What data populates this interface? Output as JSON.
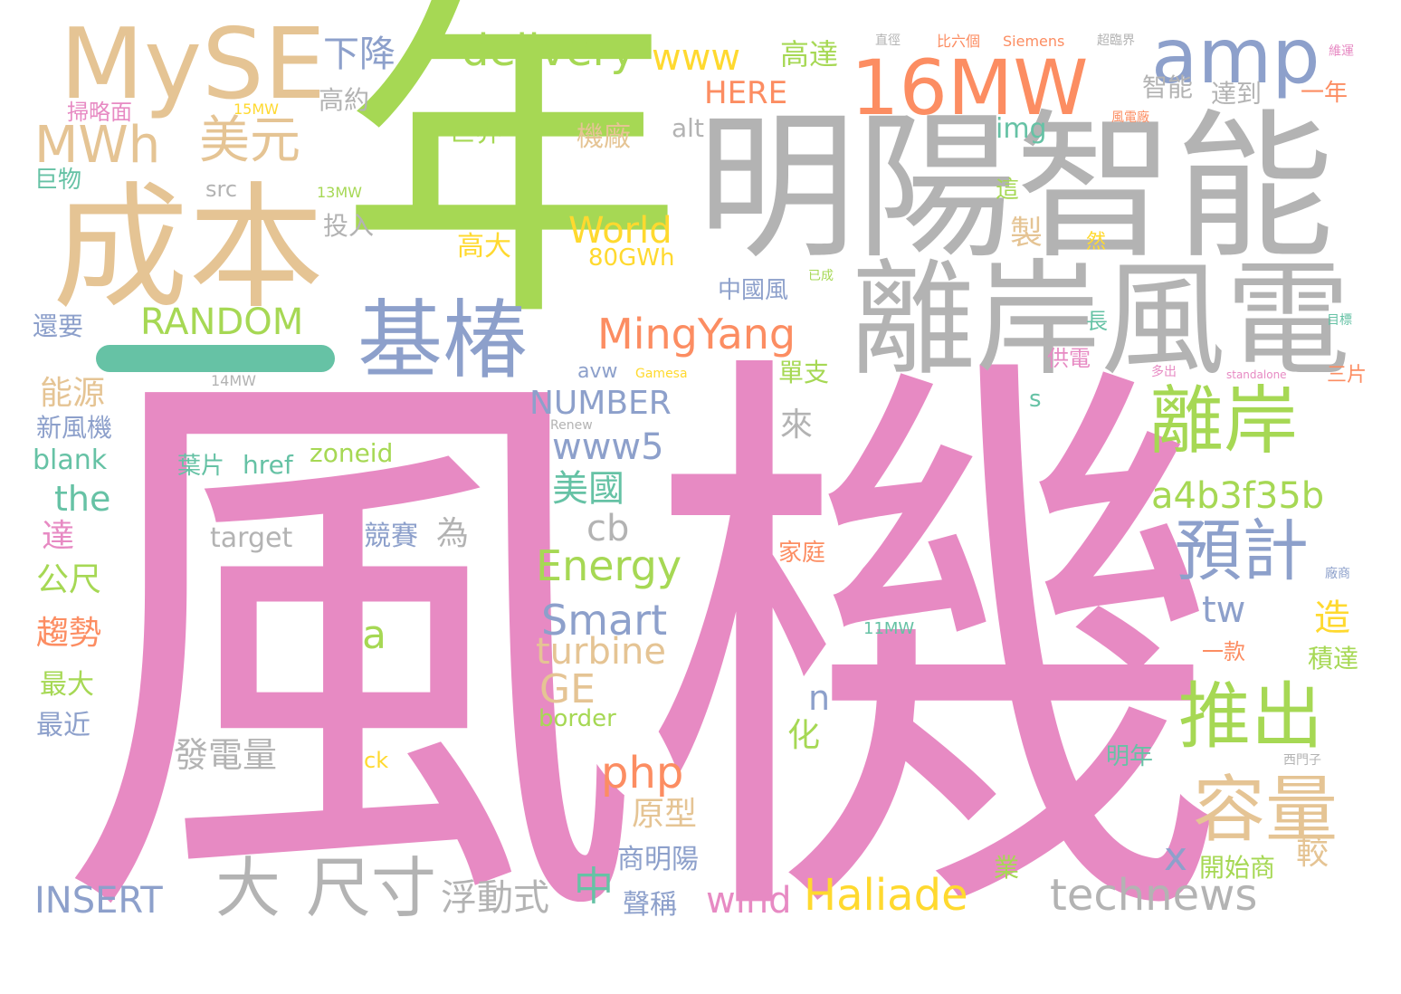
{
  "palette": {
    "pink": "#e78ac3",
    "green": "#a6d854",
    "gray": "#b3b3b3",
    "tan": "#e5c494",
    "orange": "#fc8d62",
    "blue": "#8da0cb",
    "teal": "#66c2a5",
    "yellow": "#ffd92f",
    "background": "#ffffff"
  },
  "words": [
    "風機",
    "年",
    "明陽智能",
    "離岸風電",
    "成本",
    "MySE",
    "16MW",
    "amp",
    "基椿",
    "一",
    "MWh",
    "美元",
    "下降",
    "delivery",
    "www",
    "高達",
    "RANDOM",
    "MingYang",
    "推出",
    "容量",
    "離岸",
    "預計",
    "大",
    "尺寸",
    "Haliade",
    "technews",
    "浮動式",
    "中",
    "商明陽",
    "聲稱",
    "wind",
    "INSERT",
    "a4b3f35b",
    "Energy",
    "Smart",
    "turbine",
    "GE",
    "php",
    "原型",
    "發電量",
    "NUMBER",
    "www5",
    "美國",
    "cb",
    "tw",
    "World",
    "80GWh",
    "高大",
    "世界",
    "機廠",
    "alt",
    "img",
    "HERE",
    "智能",
    "達到",
    "一年",
    "高約",
    "src",
    "投入",
    "能源",
    "還要",
    "新風機",
    "blank",
    "the",
    "達",
    "公尺",
    "趨勢",
    "最大",
    "最近",
    "葉片",
    "href",
    "zoneid",
    "target",
    "競賽",
    "為",
    "x",
    "開始商",
    "較",
    "業",
    "化",
    "n",
    "單支",
    "來",
    "中國風",
    "長",
    "供電",
    "造",
    "積達",
    "三片",
    "掃略面",
    "巨物",
    "15MW",
    "13MW",
    "14MW",
    "11MW",
    "border",
    "ck",
    "avw",
    "s",
    "製",
    "這",
    "然",
    "一款",
    "明年",
    "西門子",
    "風電廠",
    "比六個",
    "Siemens",
    "超臨界",
    "直徑",
    "維運",
    "Gamesa",
    "standalone",
    "Renew",
    "a",
    "家庭",
    "廠商",
    "目標",
    "多出",
    "已成"
  ]
}
